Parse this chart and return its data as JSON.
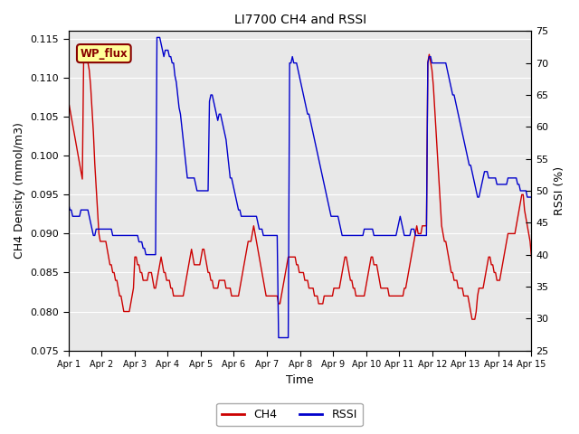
{
  "title": "LI7700 CH4 and RSSI",
  "ylabel_left": "CH4 Density (mmol/m3)",
  "ylabel_right": "RSSI (%)",
  "xlabel": "Time",
  "ylim_left": [
    0.075,
    0.116
  ],
  "ylim_right": [
    25,
    75
  ],
  "yticks_left": [
    0.075,
    0.08,
    0.085,
    0.09,
    0.095,
    0.1,
    0.105,
    0.11,
    0.115
  ],
  "yticks_right": [
    25,
    30,
    35,
    40,
    45,
    50,
    55,
    60,
    65,
    70,
    75
  ],
  "bg_color": "#e8e8e8",
  "ch4_color": "#cc0000",
  "rssi_color": "#0000cc",
  "label_box_text": "WP_flux",
  "label_box_facecolor": "#ffff99",
  "label_box_edgecolor": "#880000",
  "xtick_labels": [
    "Apr 1",
    "Apr 2",
    "Apr 3",
    "Apr 4",
    "Apr 5",
    "Apr 6",
    "Apr 7",
    "Apr 8",
    "Apr 9",
    "Apr 10",
    "Apr 11",
    "Apr 12",
    "Apr 13",
    "Apr 14",
    "Apr 15"
  ],
  "ch4_data": [
    0.107,
    0.106,
    0.105,
    0.104,
    0.103,
    0.102,
    0.101,
    0.1,
    0.099,
    0.098,
    0.097,
    0.113,
    0.113,
    0.113,
    0.112,
    0.111,
    0.109,
    0.106,
    0.103,
    0.099,
    0.096,
    0.093,
    0.09,
    0.089,
    0.089,
    0.089,
    0.089,
    0.089,
    0.088,
    0.087,
    0.086,
    0.086,
    0.085,
    0.085,
    0.084,
    0.084,
    0.083,
    0.082,
    0.082,
    0.081,
    0.08,
    0.08,
    0.08,
    0.08,
    0.08,
    0.081,
    0.082,
    0.083,
    0.087,
    0.087,
    0.086,
    0.086,
    0.085,
    0.085,
    0.084,
    0.084,
    0.084,
    0.084,
    0.085,
    0.085,
    0.085,
    0.084,
    0.083,
    0.083,
    0.084,
    0.085,
    0.086,
    0.087,
    0.086,
    0.085,
    0.085,
    0.084,
    0.084,
    0.084,
    0.083,
    0.083,
    0.082,
    0.082,
    0.082,
    0.082,
    0.082,
    0.082,
    0.082,
    0.082,
    0.083,
    0.084,
    0.085,
    0.086,
    0.087,
    0.088,
    0.087,
    0.086,
    0.086,
    0.086,
    0.086,
    0.086,
    0.087,
    0.088,
    0.088,
    0.087,
    0.086,
    0.085,
    0.085,
    0.084,
    0.084,
    0.083,
    0.083,
    0.083,
    0.083,
    0.084,
    0.084,
    0.084,
    0.084,
    0.084,
    0.083,
    0.083,
    0.083,
    0.083,
    0.082,
    0.082,
    0.082,
    0.082,
    0.082,
    0.082,
    0.083,
    0.084,
    0.085,
    0.086,
    0.087,
    0.088,
    0.089,
    0.089,
    0.089,
    0.09,
    0.091,
    0.09,
    0.089,
    0.088,
    0.087,
    0.086,
    0.085,
    0.084,
    0.083,
    0.082,
    0.082,
    0.082,
    0.082,
    0.082,
    0.082,
    0.082,
    0.082,
    0.082,
    0.081,
    0.081,
    0.082,
    0.083,
    0.084,
    0.085,
    0.086,
    0.087,
    0.087,
    0.087,
    0.087,
    0.087,
    0.087,
    0.086,
    0.086,
    0.085,
    0.085,
    0.085,
    0.085,
    0.084,
    0.084,
    0.084,
    0.083,
    0.083,
    0.083,
    0.083,
    0.082,
    0.082,
    0.082,
    0.081,
    0.081,
    0.081,
    0.081,
    0.082,
    0.082,
    0.082,
    0.082,
    0.082,
    0.082,
    0.082,
    0.083,
    0.083,
    0.083,
    0.083,
    0.083,
    0.084,
    0.085,
    0.086,
    0.087,
    0.087,
    0.086,
    0.085,
    0.084,
    0.084,
    0.083,
    0.083,
    0.082,
    0.082,
    0.082,
    0.082,
    0.082,
    0.082,
    0.082,
    0.083,
    0.084,
    0.085,
    0.086,
    0.087,
    0.087,
    0.086,
    0.086,
    0.086,
    0.085,
    0.084,
    0.083,
    0.083,
    0.083,
    0.083,
    0.083,
    0.083,
    0.082,
    0.082,
    0.082,
    0.082,
    0.082,
    0.082,
    0.082,
    0.082,
    0.082,
    0.082,
    0.082,
    0.083,
    0.083,
    0.084,
    0.085,
    0.086,
    0.087,
    0.088,
    0.089,
    0.09,
    0.091,
    0.09,
    0.09,
    0.09,
    0.091,
    0.091,
    0.091,
    0.091,
    0.112,
    0.113,
    0.112,
    0.111,
    0.109,
    0.106,
    0.103,
    0.1,
    0.097,
    0.094,
    0.091,
    0.09,
    0.089,
    0.089,
    0.088,
    0.087,
    0.086,
    0.085,
    0.085,
    0.084,
    0.084,
    0.084,
    0.083,
    0.083,
    0.083,
    0.083,
    0.082,
    0.082,
    0.082,
    0.082,
    0.081,
    0.08,
    0.079,
    0.079,
    0.079,
    0.08,
    0.082,
    0.083,
    0.083,
    0.083,
    0.083,
    0.084,
    0.085,
    0.086,
    0.087,
    0.087,
    0.086,
    0.086,
    0.085,
    0.085,
    0.084,
    0.084,
    0.084,
    0.085,
    0.086,
    0.087,
    0.088,
    0.089,
    0.09,
    0.09,
    0.09,
    0.09,
    0.09,
    0.09,
    0.091,
    0.092,
    0.093,
    0.094,
    0.095,
    0.095,
    0.093,
    0.092,
    0.091,
    0.09,
    0.089,
    0.087
  ],
  "rssi_data": [
    48,
    47,
    47,
    46,
    46,
    46,
    46,
    46,
    46,
    47,
    47,
    47,
    47,
    47,
    47,
    46,
    45,
    44,
    43,
    43,
    44,
    44,
    44,
    44,
    44,
    44,
    44,
    44,
    44,
    44,
    44,
    44,
    43,
    43,
    43,
    43,
    43,
    43,
    43,
    43,
    43,
    43,
    43,
    43,
    43,
    43,
    43,
    43,
    43,
    43,
    43,
    42,
    42,
    42,
    41,
    41,
    40,
    40,
    40,
    40,
    40,
    40,
    40,
    40,
    74,
    74,
    74,
    73,
    72,
    71,
    72,
    72,
    72,
    71,
    71,
    70,
    70,
    68,
    67,
    65,
    63,
    62,
    60,
    58,
    56,
    54,
    52,
    52,
    52,
    52,
    52,
    52,
    51,
    50,
    50,
    50,
    50,
    50,
    50,
    50,
    50,
    50,
    64,
    65,
    65,
    64,
    63,
    62,
    61,
    62,
    62,
    61,
    60,
    59,
    58,
    56,
    54,
    52,
    52,
    51,
    50,
    49,
    48,
    47,
    47,
    46,
    46,
    46,
    46,
    46,
    46,
    46,
    46,
    46,
    46,
    46,
    46,
    45,
    44,
    44,
    44,
    43,
    43,
    43,
    43,
    43,
    43,
    43,
    43,
    43,
    43,
    43,
    27,
    27,
    27,
    27,
    27,
    27,
    27,
    27,
    70,
    70,
    71,
    70,
    70,
    70,
    69,
    68,
    67,
    66,
    65,
    64,
    63,
    62,
    62,
    61,
    60,
    59,
    58,
    57,
    56,
    55,
    54,
    53,
    52,
    51,
    50,
    49,
    48,
    47,
    46,
    46,
    46,
    46,
    46,
    46,
    45,
    44,
    43,
    43,
    43,
    43,
    43,
    43,
    43,
    43,
    43,
    43,
    43,
    43,
    43,
    43,
    43,
    43,
    44,
    44,
    44,
    44,
    44,
    44,
    44,
    43,
    43,
    43,
    43,
    43,
    43,
    43,
    43,
    43,
    43,
    43,
    43,
    43,
    43,
    43,
    43,
    43,
    44,
    45,
    46,
    45,
    44,
    43,
    43,
    43,
    43,
    43,
    44,
    44,
    44,
    43,
    43,
    43,
    43,
    43,
    43,
    43,
    43,
    43,
    70,
    71,
    71,
    70,
    70,
    70,
    70,
    70,
    70,
    70,
    70,
    70,
    70,
    70,
    69,
    68,
    67,
    66,
    65,
    65,
    64,
    63,
    62,
    61,
    60,
    59,
    58,
    57,
    56,
    55,
    54,
    54,
    53,
    52,
    51,
    50,
    49,
    49,
    50,
    51,
    52,
    53,
    53,
    53,
    52,
    52,
    52,
    52,
    52,
    52,
    51,
    51,
    51,
    51,
    51,
    51,
    51,
    51,
    52,
    52,
    52,
    52,
    52,
    52,
    52,
    51,
    51,
    50,
    50,
    50,
    50,
    50,
    49,
    49,
    49,
    49
  ]
}
